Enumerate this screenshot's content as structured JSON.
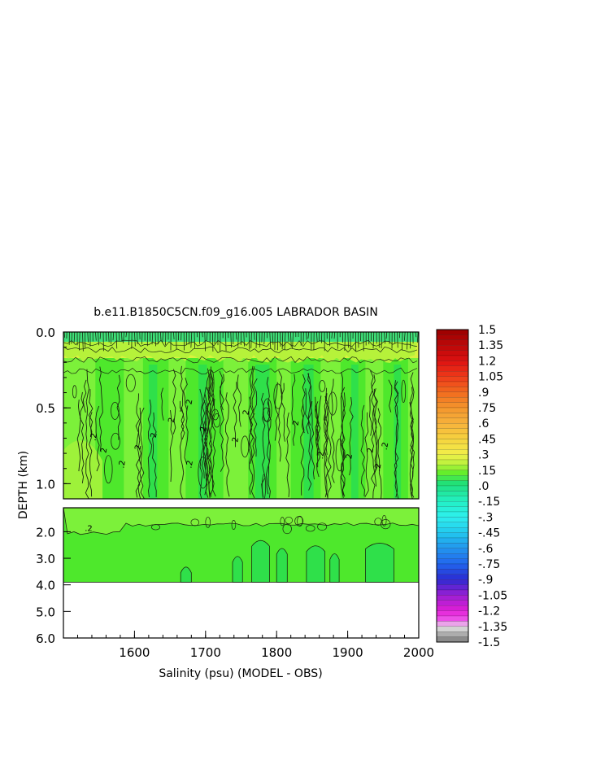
{
  "chart_data": {
    "type": "heatmap",
    "title": "b.e11.B1850C5CN.f09_g16.005 LABRADOR BASIN",
    "xlabel": "Salinity (psu) (MODEL - OBS)",
    "ylabel": "DEPTH (km)",
    "xlim": [
      1500,
      2000
    ],
    "x_ticks": [
      "1600",
      "1700",
      "1800",
      "1900",
      "2000"
    ],
    "x_tick_values": [
      1600,
      1700,
      1800,
      1900,
      2000
    ],
    "panels": [
      {
        "name": "upper",
        "ylim": [
          0.0,
          1.1
        ],
        "y_ticks": [
          "0.0",
          "0.5",
          "1.0"
        ],
        "y_tick_values": [
          0.0,
          0.5,
          1.0
        ]
      },
      {
        "name": "lower",
        "ylim": [
          1.1,
          6.0
        ],
        "y_ticks": [
          "2.0",
          "3.0",
          "4.0",
          "5.0",
          "6.0"
        ],
        "y_tick_values": [
          2.0,
          3.0,
          4.0,
          5.0,
          6.0
        ]
      }
    ],
    "data_bottom_depth": 3.9,
    "contour_labels": [
      ".2",
      "2"
    ],
    "colorbar": {
      "min": -1.5,
      "max": 1.5,
      "step": 0.05,
      "labels": [
        "1.5",
        "1.35",
        "1.2",
        "1.05",
        ".9",
        ".75",
        ".6",
        ".45",
        ".3",
        ".15",
        ".0",
        "-.15",
        "-.3",
        "-.45",
        "-.6",
        "-.75",
        "-.9",
        "-1.05",
        "-1.2",
        "-1.35",
        "-1.5"
      ],
      "label_values": [
        1.5,
        1.35,
        1.2,
        1.05,
        0.9,
        0.75,
        0.6,
        0.45,
        0.3,
        0.15,
        0.0,
        -0.15,
        -0.3,
        -0.45,
        -0.6,
        -0.75,
        -0.9,
        -1.05,
        -1.2,
        -1.35,
        -1.5
      ],
      "stops": [
        {
          "v": 1.5,
          "c": "#9a0000"
        },
        {
          "v": 1.2,
          "c": "#dd1010"
        },
        {
          "v": 1.05,
          "c": "#ee3a1a"
        },
        {
          "v": 0.9,
          "c": "#f26a1e"
        },
        {
          "v": 0.75,
          "c": "#f3952c"
        },
        {
          "v": 0.6,
          "c": "#f7b23c"
        },
        {
          "v": 0.45,
          "c": "#f6d23e"
        },
        {
          "v": 0.3,
          "c": "#f1f04a"
        },
        {
          "v": 0.2,
          "c": "#b4f23a"
        },
        {
          "v": 0.12,
          "c": "#60ee2a"
        },
        {
          "v": 0.02,
          "c": "#1fe07a"
        },
        {
          "v": -0.15,
          "c": "#22f0c4"
        },
        {
          "v": -0.3,
          "c": "#2ef0ee"
        },
        {
          "v": -0.45,
          "c": "#22c8ee"
        },
        {
          "v": -0.6,
          "c": "#2296ee"
        },
        {
          "v": -0.75,
          "c": "#2266ee"
        },
        {
          "v": -0.9,
          "c": "#2a2ad2"
        },
        {
          "v": -1.05,
          "c": "#9a1ed4"
        },
        {
          "v": -1.2,
          "c": "#e21ed6"
        },
        {
          "v": -1.3,
          "c": "#f060ee"
        },
        {
          "v": -1.35,
          "c": "#e6e6e6"
        },
        {
          "v": -1.42,
          "c": "#b0b0b0"
        },
        {
          "v": -1.5,
          "c": "#7a7a7a"
        }
      ]
    },
    "field_colors": {
      "base": "#4ee82c",
      "light": "#7cf13a",
      "dark": "#2fe04a",
      "yellow": "#d8f23e",
      "contour": "#1a2a10"
    }
  }
}
